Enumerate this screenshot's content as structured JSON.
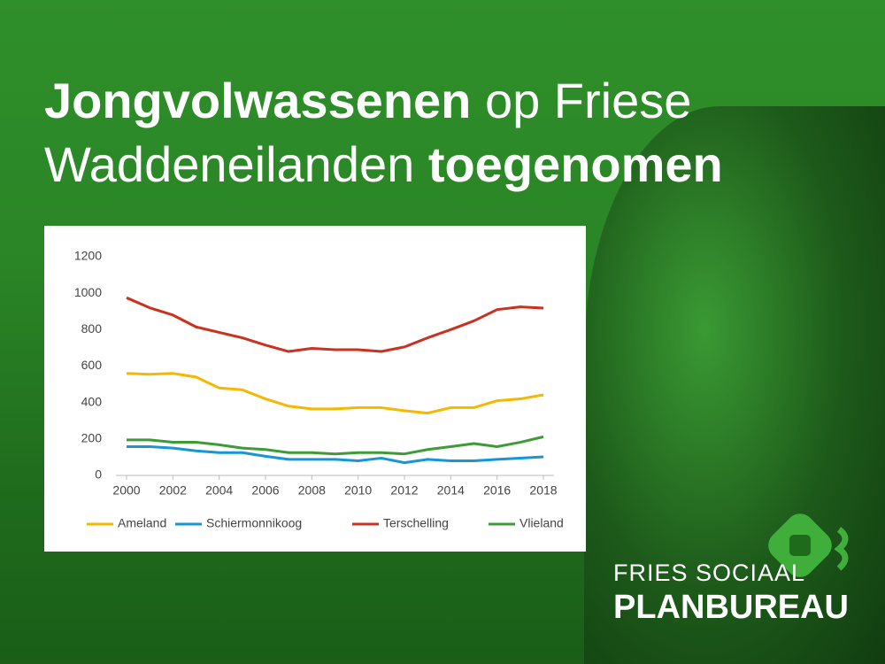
{
  "headline": [
    "Jongvolwassenen",
    "op Friese",
    "Waddeneilanden",
    "toegenomen"
  ],
  "logo": {
    "line1": "FRIES SOCIAAL",
    "line2": "PLANBUREAU"
  },
  "chart_data": {
    "type": "line",
    "x": [
      2000,
      2001,
      2002,
      2003,
      2004,
      2005,
      2006,
      2007,
      2008,
      2009,
      2010,
      2011,
      2012,
      2013,
      2014,
      2015,
      2016,
      2017,
      2018
    ],
    "series": [
      {
        "name": "Ameland",
        "color": "#f5b800",
        "values": [
          560,
          555,
          560,
          540,
          480,
          470,
          420,
          380,
          365,
          365,
          372,
          372,
          355,
          342,
          372,
          372,
          410,
          420,
          442
        ]
      },
      {
        "name": "Schiermonnikoog",
        "color": "#1596d6",
        "values": [
          158,
          158,
          150,
          135,
          125,
          125,
          105,
          88,
          88,
          88,
          80,
          95,
          70,
          88,
          80,
          80,
          88,
          95,
          102
        ]
      },
      {
        "name": "Terschelling",
        "color": "#c8321e",
        "values": [
          975,
          920,
          880,
          815,
          785,
          755,
          715,
          680,
          697,
          690,
          690,
          680,
          705,
          755,
          800,
          848,
          910,
          925,
          918
        ]
      },
      {
        "name": "Vlieland",
        "color": "#3d9c35",
        "values": [
          195,
          195,
          182,
          182,
          168,
          150,
          142,
          125,
          125,
          118,
          125,
          125,
          118,
          142,
          158,
          175,
          158,
          182,
          212
        ]
      }
    ],
    "xlim": [
      2000,
      2018
    ],
    "xticks": [
      2000,
      2002,
      2004,
      2006,
      2008,
      2010,
      2012,
      2014,
      2016,
      2018
    ],
    "ylim": [
      0,
      1200
    ],
    "yticks": [
      0,
      200,
      400,
      600,
      800,
      1000,
      1200
    ],
    "grid": false
  }
}
